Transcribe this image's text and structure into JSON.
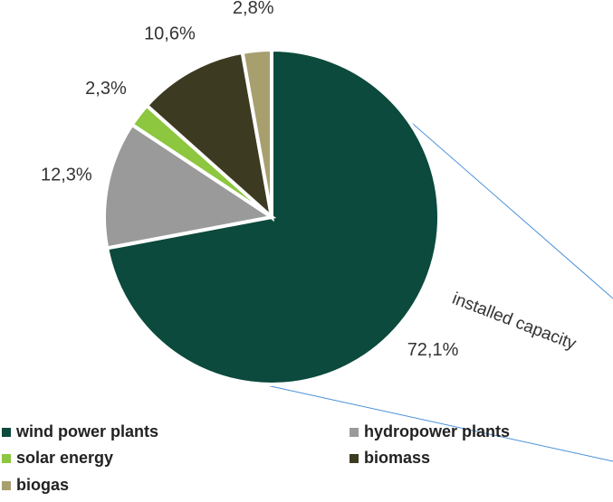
{
  "chart_data": {
    "type": "pie",
    "categories": [
      "wind power plants",
      "hydropower plants",
      "solar energy",
      "biomass",
      "biogas"
    ],
    "values": [
      72.1,
      12.3,
      2.3,
      10.6,
      2.8
    ],
    "value_labels": [
      "72,1%",
      "12,3%",
      "2,3%",
      "10,6%",
      "2,8%"
    ],
    "colors": [
      "#0b4a3c",
      "#9a9a9a",
      "#8dc63f",
      "#3d3a22",
      "#a89f6f"
    ],
    "annotation": "installed capacity",
    "legend": true
  }
}
